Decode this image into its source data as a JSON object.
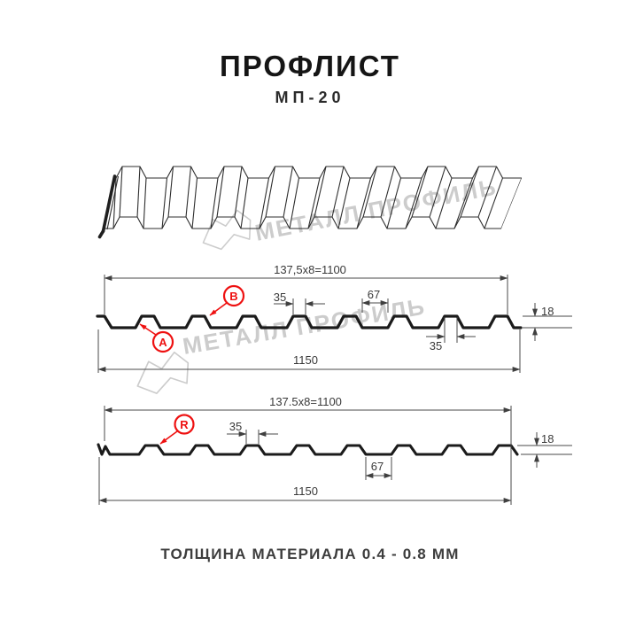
{
  "title": "ПРОФЛИСТ",
  "subtitle": "МП-20",
  "footer": "ТОЛЩИНА МАТЕРИАЛА 0.4 - 0.8 ММ",
  "watermark": "МЕТАЛЛ ПРОФИЛЬ",
  "colors": {
    "accent_red": "#ee1111",
    "profile_line": "#1b1b1b",
    "dim_line": "#4a4a4a",
    "dim_text": "#3a3a3a",
    "watermark_gray": "#cccccc"
  },
  "d1": {
    "pitch": "137,5x8=1100",
    "crest_top": "35",
    "valley": "67",
    "crest_bottom": "35",
    "height": "18",
    "total": "1150",
    "label_a": "A",
    "label_b": "B"
  },
  "d2": {
    "pitch": "137.5x8=1100",
    "crest": "35",
    "valley": "67",
    "height": "18",
    "total": "1150",
    "label_r": "R"
  }
}
